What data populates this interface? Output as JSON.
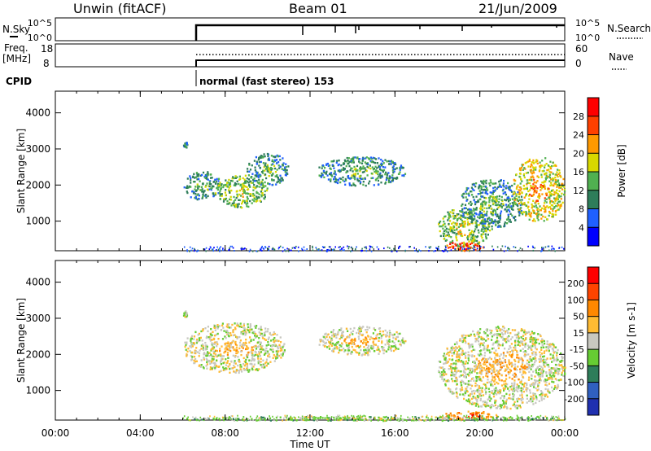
{
  "header": {
    "station": "Unwin (fitACF)",
    "beam": "Beam 01",
    "date": "21/Jun/2009"
  },
  "top_panels": {
    "nsky_label": "N.Sky",
    "nsearch_label": "N.Search",
    "freq_label_1": "Freq.",
    "freq_label_2": "[MHz]",
    "nave_label": "Nave",
    "cpid_label": "CPID",
    "noise_ticks": [
      "10^5",
      "10^0"
    ],
    "freq_ticks": [
      "18",
      "8"
    ],
    "nave_ticks": [
      "60",
      "0"
    ],
    "cpid_text": "normal (fast stereo) 153"
  },
  "chart_data": [
    {
      "type": "heatmap",
      "name": "power",
      "xlabel": "Time UT",
      "ylabel": "Slant Range [km]",
      "x_ticks": [
        "00:00",
        "04:00",
        "08:00",
        "12:00",
        "16:00",
        "20:00",
        "00:00"
      ],
      "x_range_hours": [
        0,
        24
      ],
      "y_ticks": [
        1000,
        2000,
        3000,
        4000
      ],
      "ylim": [
        180,
        4600
      ],
      "colorbar_label": "Power [dB]",
      "colorbar_ticks": [
        4,
        8,
        12,
        16,
        20,
        24,
        28
      ],
      "colorbar_range": [
        0,
        32
      ],
      "colors": [
        "#0000ff",
        "#2060ff",
        "#2e7d5a",
        "#50b050",
        "#d8d800",
        "#ff9900",
        "#ff4000",
        "#ff0000"
      ],
      "features": [
        {
          "t0": 6.0,
          "t1": 6.2,
          "r0": 3050,
          "r1": 3220,
          "level": 2
        },
        {
          "t0": 6.0,
          "t1": 7.8,
          "r0": 1600,
          "r1": 2400,
          "level": 2
        },
        {
          "t0": 7.5,
          "t1": 10.0,
          "r0": 1400,
          "r1": 2300,
          "level": 3
        },
        {
          "t0": 9.0,
          "t1": 11.0,
          "r0": 2000,
          "r1": 2900,
          "level": 2
        },
        {
          "t0": 12.3,
          "t1": 16.5,
          "r0": 2000,
          "r1": 2800,
          "level": 2
        },
        {
          "t0": 18.0,
          "t1": 20.5,
          "r0": 300,
          "r1": 1400,
          "level": 3
        },
        {
          "t0": 19.0,
          "t1": 22.0,
          "r0": 800,
          "r1": 2200,
          "level": 2
        },
        {
          "t0": 21.5,
          "t1": 24.0,
          "r0": 1000,
          "r1": 2800,
          "level": 4
        },
        {
          "t0": 18.3,
          "t1": 20.2,
          "r0": 200,
          "r1": 450,
          "level": 6
        }
      ]
    },
    {
      "type": "heatmap",
      "name": "velocity",
      "xlabel": "Time UT",
      "ylabel": "Slant Range [km]",
      "x_ticks": [
        "00:00",
        "04:00",
        "08:00",
        "12:00",
        "16:00",
        "20:00",
        "00:00"
      ],
      "x_range_hours": [
        0,
        24
      ],
      "y_ticks": [
        1000,
        2000,
        3000,
        4000
      ],
      "ylim": [
        180,
        4600
      ],
      "colorbar_label": "Velocity [m s-1]",
      "colorbar_ticks": [
        "200",
        "100",
        "50",
        "15",
        "-15",
        "-50",
        "-100",
        "-200"
      ],
      "colors": [
        "#2030b0",
        "#3060c0",
        "#2e7d5a",
        "#66cc33",
        "#c8c8c0",
        "#ffbb33",
        "#ff8800",
        "#ff4400",
        "#ff0000"
      ],
      "features": [
        {
          "t0": 6.0,
          "t1": 6.2,
          "r0": 3050,
          "r1": 3220,
          "level": 4
        },
        {
          "t0": 6.0,
          "t1": 10.8,
          "r0": 1500,
          "r1": 2900,
          "level": 4
        },
        {
          "t0": 12.3,
          "t1": 16.5,
          "r0": 2000,
          "r1": 2800,
          "level": 4
        },
        {
          "t0": 18.0,
          "t1": 24.0,
          "r0": 500,
          "r1": 2800,
          "level": 4
        },
        {
          "t0": 18.0,
          "t1": 21.0,
          "r0": 200,
          "r1": 450,
          "level": 6
        },
        {
          "t0": 6.0,
          "t1": 24.0,
          "r0": 180,
          "r1": 300,
          "level": 3
        }
      ]
    }
  ]
}
